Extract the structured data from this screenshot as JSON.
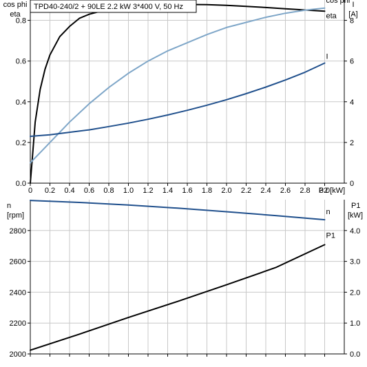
{
  "header": {
    "title": "TPD40-240/2 + 90LE   2.2 kW   3*400 V, 50 Hz"
  },
  "colors": {
    "eta": "#000000",
    "cos_phi": "#7ea6c8",
    "current": "#1f4f8c",
    "speed": "#1f4f8c",
    "power": "#000000"
  },
  "chart_data": [
    {
      "type": "line",
      "xlabel": "P2 [kW]",
      "ylabel_left": "cos phi\neta",
      "ylabel_right": "I\n[A]",
      "xlim": [
        0,
        3.2
      ],
      "ylim_left": [
        0,
        0.9
      ],
      "ylim_right": [
        0,
        9
      ],
      "grid": true,
      "x_ticks": [
        0,
        0.2,
        0.4,
        0.6,
        0.8,
        1.0,
        1.2,
        1.4,
        1.6,
        1.8,
        2.0,
        2.2,
        2.4,
        2.6,
        2.8,
        3.0
      ],
      "x_tick_labels": [
        "0",
        "0.2",
        "0.4",
        "0.6",
        "0.8",
        "1.0",
        "1.2",
        "1.4",
        "1.6",
        "1.8",
        "2.0",
        "2.2",
        "2.4",
        "2.6",
        "2.8",
        "3.0"
      ],
      "y_ticks_left": [
        0,
        0.2,
        0.4,
        0.6,
        0.8
      ],
      "y_tick_labels_left": [
        "0.0",
        "0.2",
        "0.4",
        "0.6",
        "0.8"
      ],
      "y_ticks_right": [
        0,
        2,
        4,
        6,
        8
      ],
      "y_tick_labels_right": [
        "0",
        "2",
        "4",
        "6",
        "8"
      ],
      "series": [
        {
          "name": "eta",
          "axis": "left",
          "color": "#000000",
          "x": [
            0,
            0.02,
            0.05,
            0.1,
            0.15,
            0.2,
            0.3,
            0.4,
            0.5,
            0.6,
            0.8,
            1.0,
            1.2,
            1.4,
            1.6,
            1.8,
            2.0,
            2.2,
            2.4,
            2.6,
            2.8,
            3.0
          ],
          "y": [
            0,
            0.12,
            0.3,
            0.46,
            0.56,
            0.63,
            0.72,
            0.77,
            0.81,
            0.83,
            0.855,
            0.868,
            0.874,
            0.877,
            0.878,
            0.877,
            0.874,
            0.869,
            0.863,
            0.857,
            0.851,
            0.845
          ]
        },
        {
          "name": "cos phi",
          "axis": "left",
          "color": "#7ea6c8",
          "x": [
            0,
            0.1,
            0.2,
            0.3,
            0.4,
            0.6,
            0.8,
            1.0,
            1.2,
            1.4,
            1.6,
            1.8,
            2.0,
            2.2,
            2.4,
            2.6,
            2.8,
            3.0
          ],
          "y": [
            0.1,
            0.15,
            0.2,
            0.25,
            0.3,
            0.39,
            0.47,
            0.54,
            0.6,
            0.65,
            0.69,
            0.73,
            0.765,
            0.79,
            0.815,
            0.835,
            0.85,
            0.86
          ]
        },
        {
          "name": "I",
          "axis": "right",
          "color": "#1f4f8c",
          "x": [
            0,
            0.2,
            0.4,
            0.6,
            0.8,
            1.0,
            1.2,
            1.4,
            1.6,
            1.8,
            2.0,
            2.2,
            2.4,
            2.6,
            2.8,
            3.0
          ],
          "y": [
            2.3,
            2.38,
            2.5,
            2.62,
            2.78,
            2.95,
            3.14,
            3.35,
            3.58,
            3.83,
            4.1,
            4.4,
            4.72,
            5.07,
            5.45,
            5.9
          ]
        }
      ]
    },
    {
      "type": "line",
      "xlabel": "",
      "ylabel_left": "n\n[rpm]",
      "ylabel_right": "P1\n[kW]",
      "xlim": [
        0,
        3.2
      ],
      "ylim_left": [
        2000,
        3000
      ],
      "ylim_right": [
        0,
        5
      ],
      "grid": true,
      "y_ticks_left": [
        2000,
        2200,
        2400,
        2600,
        2800
      ],
      "y_tick_labels_left": [
        "2000",
        "2200",
        "2400",
        "2600",
        "2800"
      ],
      "y_ticks_right": [
        0,
        1,
        2,
        3,
        4
      ],
      "y_tick_labels_right": [
        "0.0",
        "1.0",
        "2.0",
        "3.0",
        "4.0"
      ],
      "series": [
        {
          "name": "n",
          "axis": "left",
          "color": "#1f4f8c",
          "x": [
            0,
            0.5,
            1.0,
            1.5,
            2.0,
            2.5,
            3.0
          ],
          "y": [
            2995,
            2982,
            2965,
            2945,
            2922,
            2897,
            2870
          ]
        },
        {
          "name": "P1",
          "axis": "right",
          "color": "#000000",
          "x": [
            0,
            0.5,
            1.0,
            1.5,
            2.0,
            2.5,
            3.0
          ],
          "y": [
            0.12,
            0.64,
            1.18,
            1.7,
            2.24,
            2.8,
            3.54
          ]
        }
      ]
    }
  ]
}
